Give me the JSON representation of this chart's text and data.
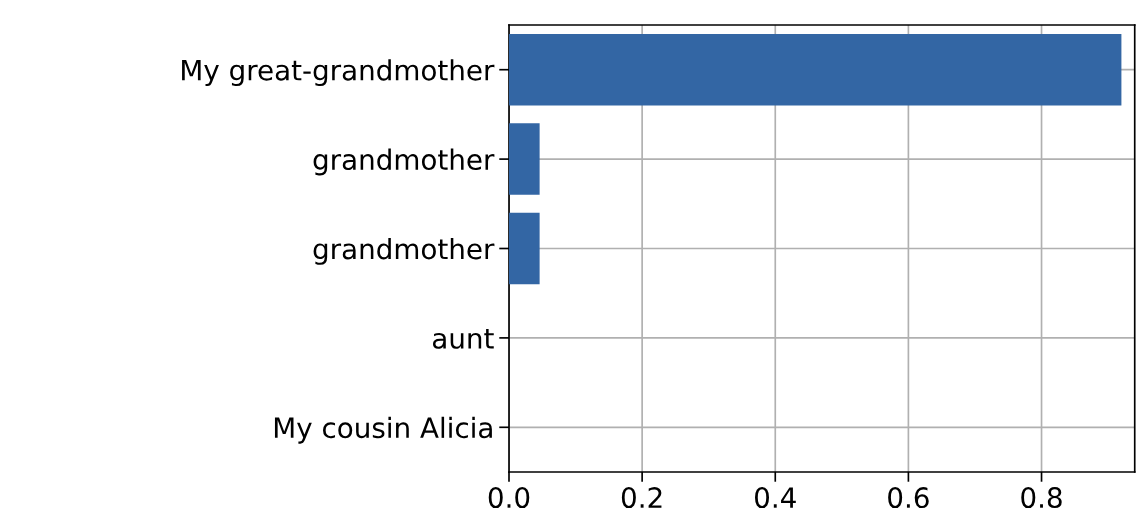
{
  "chart_data": {
    "type": "bar",
    "orientation": "horizontal",
    "categories": [
      "My great-grandmother",
      "grandmother",
      "grandmother",
      "aunt",
      "My cousin Alicia"
    ],
    "values": [
      0.92,
      0.046,
      0.046,
      0,
      0
    ],
    "color": "#3366a4",
    "xlim": [
      0,
      0.94
    ],
    "xticks": [
      {
        "value": 0,
        "label": "0.0"
      },
      0.2,
      0.4,
      0.6,
      0.8
    ],
    "grid": true
  }
}
